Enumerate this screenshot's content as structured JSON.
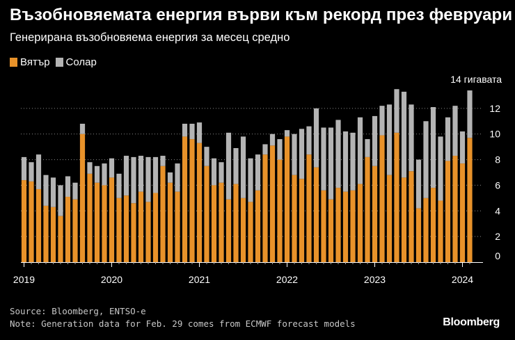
{
  "header": {
    "title": "Възобновяемата енергия върви към рекорд през февруари",
    "subtitle": "Генерирана възобновяема енергия за месец средно"
  },
  "legend": {
    "wind_label": "Вятър",
    "solar_label": "Солар"
  },
  "footer": {
    "source": "Source: Bloomberg, ENTSO-e",
    "note": "Note: Generation data for Feb. 29 comes from ECMWF forecast models",
    "brand": "Bloomberg"
  },
  "colors": {
    "wind": "#e8922a",
    "solar": "#b4b4b4",
    "background": "#000000",
    "grid": "#8a8a8a"
  },
  "chart_data": {
    "type": "bar",
    "stacked": true,
    "unit_label": "14 гигавата",
    "ylim": [
      0,
      14
    ],
    "yticks": [
      0,
      2,
      4,
      6,
      8,
      10,
      12
    ],
    "grid": true,
    "x_tick_labels": [
      "2019",
      "2020",
      "2021",
      "2022",
      "2023",
      "2024"
    ],
    "x_tick_index": [
      0,
      12,
      24,
      36,
      48,
      60
    ],
    "categories": [
      "2019-01",
      "2019-02",
      "2019-03",
      "2019-04",
      "2019-05",
      "2019-06",
      "2019-07",
      "2019-08",
      "2019-09",
      "2019-10",
      "2019-11",
      "2019-12",
      "2020-01",
      "2020-02",
      "2020-03",
      "2020-04",
      "2020-05",
      "2020-06",
      "2020-07",
      "2020-08",
      "2020-09",
      "2020-10",
      "2020-11",
      "2020-12",
      "2021-01",
      "2021-02",
      "2021-03",
      "2021-04",
      "2021-05",
      "2021-06",
      "2021-07",
      "2021-08",
      "2021-09",
      "2021-10",
      "2021-11",
      "2021-12",
      "2022-01",
      "2022-02",
      "2022-03",
      "2022-04",
      "2022-05",
      "2022-06",
      "2022-07",
      "2022-08",
      "2022-09",
      "2022-10",
      "2022-11",
      "2022-12",
      "2023-01",
      "2023-02",
      "2023-03",
      "2023-04",
      "2023-05",
      "2023-06",
      "2023-07",
      "2023-08",
      "2023-09",
      "2023-10",
      "2023-11",
      "2023-12",
      "2024-01",
      "2024-02"
    ],
    "series": [
      {
        "name": "Вятър",
        "values": [
          6.4,
          6.3,
          5.7,
          4.4,
          4.3,
          3.6,
          5.1,
          4.9,
          10.0,
          6.9,
          6.2,
          6.0,
          6.6,
          5.0,
          5.2,
          4.6,
          5.5,
          4.7,
          5.4,
          7.5,
          6.2,
          5.5,
          9.8,
          9.6,
          9.3,
          7.5,
          6.0,
          6.2,
          4.9,
          6.1,
          5.0,
          4.7,
          5.6,
          8.4,
          9.1,
          8.0,
          9.8,
          6.8,
          6.5,
          8.4,
          7.4,
          5.6,
          4.9,
          5.8,
          5.5,
          5.6,
          6.1,
          8.2,
          7.5,
          9.9,
          6.8,
          10.1,
          6.6,
          7.1,
          4.2,
          5.0,
          5.8,
          4.8,
          7.9,
          8.3,
          7.7,
          9.7
        ]
      },
      {
        "name": "Солар",
        "values": [
          1.8,
          1.5,
          2.7,
          2.4,
          2.3,
          2.4,
          1.6,
          1.3,
          0.8,
          0.9,
          1.3,
          1.7,
          1.5,
          1.9,
          3.1,
          3.6,
          2.8,
          3.5,
          2.8,
          0.8,
          0.8,
          2.2,
          1.0,
          1.2,
          1.6,
          1.5,
          2.1,
          1.6,
          5.2,
          2.8,
          4.8,
          3.4,
          2.8,
          0.8,
          0.9,
          1.6,
          0.5,
          3.2,
          3.9,
          2.2,
          4.6,
          4.9,
          5.6,
          5.3,
          4.7,
          4.5,
          5.2,
          1.4,
          3.9,
          2.3,
          5.5,
          3.4,
          6.7,
          5.2,
          3.8,
          6.0,
          6.3,
          5.0,
          3.4,
          3.9,
          2.5,
          3.7
        ]
      }
    ]
  }
}
